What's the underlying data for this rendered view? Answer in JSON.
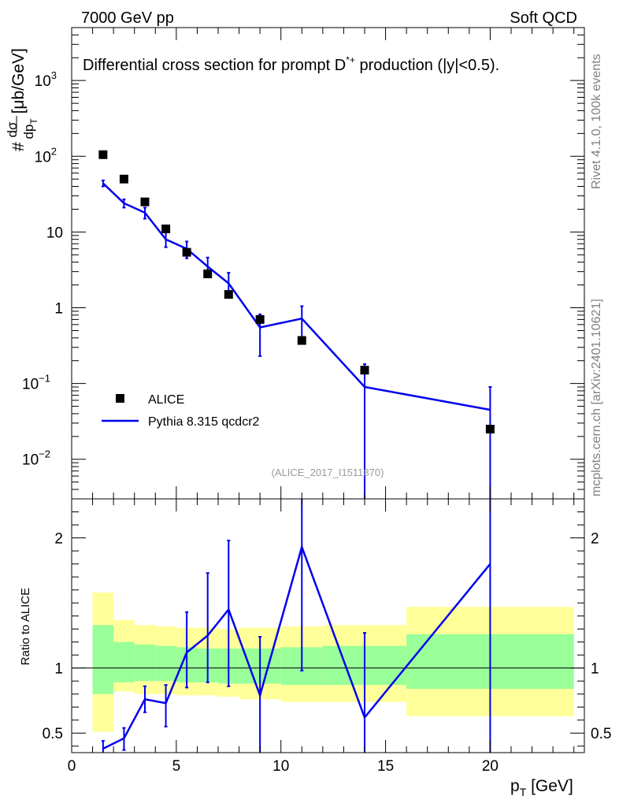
{
  "header": {
    "left": "7000 GeV pp",
    "right": "Soft QCD"
  },
  "side_labels": {
    "rivet": "Rivet 4.1.0,  100k events",
    "mcplots": "mcplots.cern.ch [arXiv:2401.10621]"
  },
  "chart_data": [
    {
      "type": "scatter",
      "panel": "main",
      "title": "Differential cross section for prompt D*+ production (|y|<0.5).",
      "title_parts": {
        "before": "Differential cross section for prompt ",
        "particle": "D",
        "sup": "*+",
        "after": " production (|y|<0.5)."
      },
      "ylabel": "# dσ/dp_T [μb/GeV]",
      "ylabel_parts": {
        "hash": "#",
        "num": "dσ",
        "den": "dp",
        "den_sub": "T",
        "unit": "[μb/GeV]"
      },
      "xlabel": "p_T [GeV]",
      "xlim": [
        0,
        24.5
      ],
      "ylim": [
        0.003,
        5000
      ],
      "yscale": "log",
      "ytick_labels": [
        {
          "value": 0.01,
          "base": "10",
          "exp": "−2"
        },
        {
          "value": 0.1,
          "base": "10",
          "exp": "−1"
        },
        {
          "value": 1,
          "base": "1",
          "exp": ""
        },
        {
          "value": 10,
          "base": "10",
          "exp": ""
        },
        {
          "value": 100,
          "base": "10",
          "exp": "2"
        },
        {
          "value": 1000,
          "base": "10",
          "exp": "3"
        }
      ],
      "analysis_label": "(ALICE_2017_I1511870)",
      "legend": [
        "ALICE",
        "Pythia 8.315 qcdcr2"
      ],
      "series": [
        {
          "name": "ALICE",
          "style": "markers",
          "x": [
            1.5,
            2.5,
            3.5,
            4.5,
            5.5,
            6.5,
            7.5,
            9,
            11,
            14,
            20
          ],
          "y": [
            105,
            50,
            25,
            11,
            5.4,
            2.8,
            1.5,
            0.7,
            0.37,
            0.15,
            0.025
          ]
        },
        {
          "name": "Pythia 8.315 qcdcr2",
          "style": "line",
          "x": [
            1.5,
            2.5,
            3.5,
            4.5,
            5.5,
            6.5,
            7.5,
            9,
            11,
            14,
            20
          ],
          "y": [
            44,
            24,
            18,
            8,
            6,
            3.5,
            2.1,
            0.55,
            0.72,
            0.09,
            0.045
          ],
          "err_lo": [
            40,
            21,
            15,
            6.3,
            4.5,
            2.6,
            1.4,
            0.23,
            0.38,
            0.0001,
            0.0001
          ],
          "err_hi": [
            48,
            27,
            21,
            10,
            7.5,
            4.6,
            2.9,
            0.82,
            1.05,
            0.18,
            0.09
          ]
        }
      ]
    },
    {
      "type": "line",
      "panel": "ratio",
      "ylabel": "Ratio to ALICE",
      "xlabel": "p_T [GeV]",
      "xlim": [
        0,
        24.5
      ],
      "ylim": [
        0.35,
        2.3
      ],
      "ytick_labels": [
        {
          "value": 0.5,
          "label": "0.5"
        },
        {
          "value": 1,
          "label": "1"
        },
        {
          "value": 2,
          "label": "2"
        }
      ],
      "xtick_labels": [
        {
          "value": 0,
          "label": "0"
        },
        {
          "value": 5,
          "label": "5"
        },
        {
          "value": 10,
          "label": "10"
        },
        {
          "value": 15,
          "label": "15"
        },
        {
          "value": 20,
          "label": "20"
        }
      ],
      "bands": [
        {
          "xlo": 1,
          "xhi": 2,
          "yellow": [
            0.51,
            1.58
          ],
          "green": [
            0.8,
            1.33
          ]
        },
        {
          "xlo": 2,
          "xhi": 3,
          "yellow": [
            0.82,
            1.37
          ],
          "green": [
            0.89,
            1.2
          ]
        },
        {
          "xlo": 3,
          "xhi": 4,
          "yellow": [
            0.8,
            1.33
          ],
          "green": [
            0.9,
            1.18
          ]
        },
        {
          "xlo": 4,
          "xhi": 5,
          "yellow": [
            0.8,
            1.32
          ],
          "green": [
            0.9,
            1.17
          ]
        },
        {
          "xlo": 5,
          "xhi": 6,
          "yellow": [
            0.79,
            1.31
          ],
          "green": [
            0.89,
            1.16
          ]
        },
        {
          "xlo": 6,
          "xhi": 7,
          "yellow": [
            0.79,
            1.31
          ],
          "green": [
            0.89,
            1.15
          ]
        },
        {
          "xlo": 7,
          "xhi": 8,
          "yellow": [
            0.78,
            1.3
          ],
          "green": [
            0.88,
            1.15
          ]
        },
        {
          "xlo": 8,
          "xhi": 10,
          "yellow": [
            0.76,
            1.31
          ],
          "green": [
            0.88,
            1.15
          ]
        },
        {
          "xlo": 10,
          "xhi": 12,
          "yellow": [
            0.74,
            1.32
          ],
          "green": [
            0.87,
            1.16
          ]
        },
        {
          "xlo": 12,
          "xhi": 16,
          "yellow": [
            0.74,
            1.33
          ],
          "green": [
            0.87,
            1.17
          ]
        },
        {
          "xlo": 16,
          "xhi": 24,
          "yellow": [
            0.63,
            1.47
          ],
          "green": [
            0.84,
            1.26
          ]
        }
      ],
      "reference_line": 1,
      "series": [
        {
          "name": "Pythia 8.315 qcdcr2 / ALICE",
          "x": [
            1.5,
            2.5,
            3.5,
            4.5,
            5.5,
            6.5,
            7.5,
            9,
            11,
            14,
            20
          ],
          "y": [
            0.38,
            0.46,
            0.76,
            0.73,
            1.12,
            1.25,
            1.45,
            0.79,
            1.93,
            0.62,
            1.8
          ],
          "err_lo": [
            0.33,
            0.37,
            0.66,
            0.55,
            0.85,
            0.89,
            0.86,
            0.3,
            0.98,
            0.3,
            0.3
          ],
          "err_hi": [
            0.44,
            0.54,
            0.86,
            0.87,
            1.43,
            1.73,
            1.98,
            1.24,
            2.3,
            1.27,
            2.3
          ]
        }
      ]
    }
  ],
  "colors": {
    "data": "#000000",
    "mc": "#0000ee",
    "band_yellow": "#ffff99",
    "band_green": "#99ff99",
    "gray_text": "#808080",
    "analysis_text": "#999999"
  }
}
